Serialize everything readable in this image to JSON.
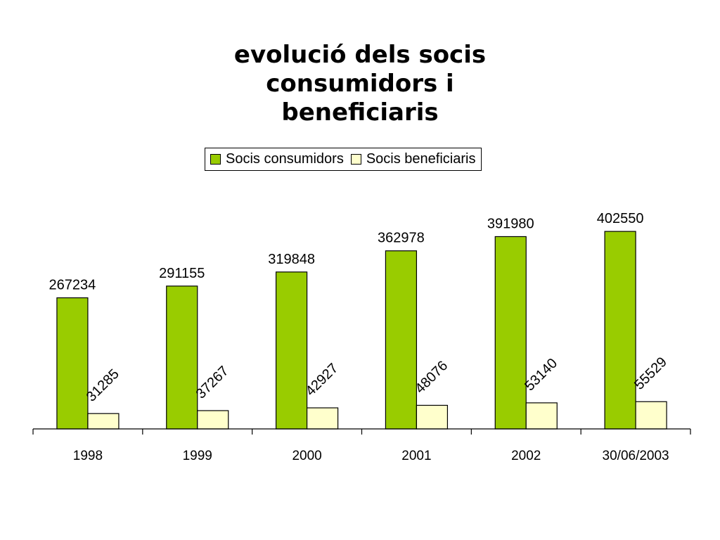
{
  "chart_data": {
    "type": "bar",
    "title": [
      "evolució dels socis consumidors i",
      "beneficiaris"
    ],
    "categories": [
      "1998",
      "1999",
      "2000",
      "2001",
      "2002",
      "30/06/2003"
    ],
    "series": [
      {
        "name": "Socis consumidors",
        "values": [
          267234,
          291155,
          319848,
          362978,
          391980,
          402550
        ],
        "color": "#99CC00"
      },
      {
        "name": "Socis beneficiaris",
        "values": [
          31285,
          37267,
          42927,
          48076,
          53140,
          55529
        ],
        "color": "#FFFFCC"
      }
    ],
    "ylim": [
      0,
      450000
    ],
    "grid": false,
    "legend_position": "top",
    "data_labels": true
  }
}
